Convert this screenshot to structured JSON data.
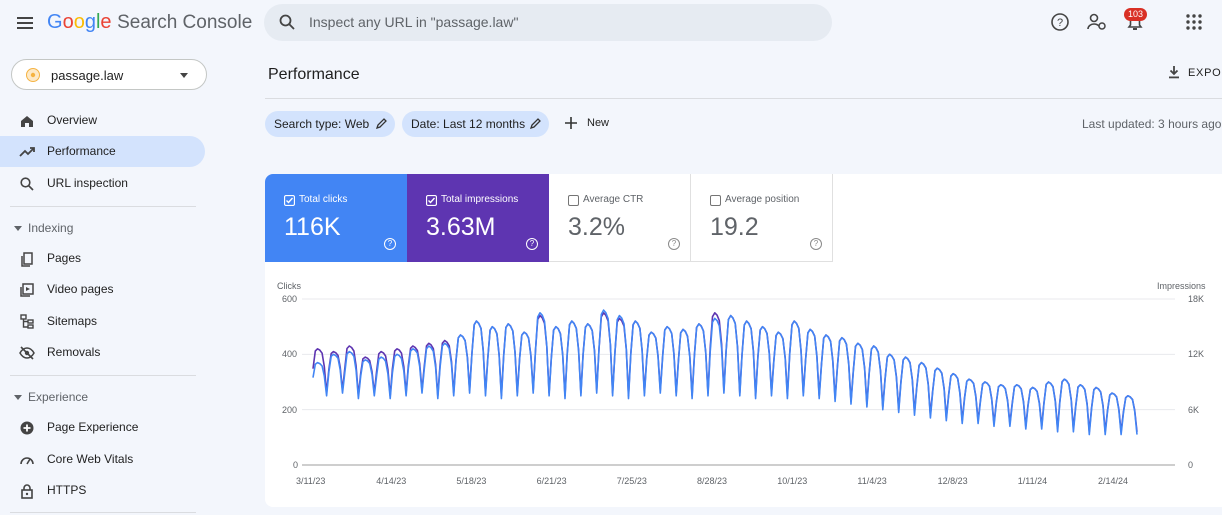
{
  "app": {
    "logo_google": "Google",
    "logo_product": "Search Console",
    "search_placeholder": "Inspect any URL in \"passage.law\"",
    "notification_count": "103"
  },
  "sidebar": {
    "property": "passage.law",
    "items_top": [
      {
        "label": "Overview",
        "icon": "home-icon"
      },
      {
        "label": "Performance",
        "icon": "trending-up-icon",
        "active": true
      },
      {
        "label": "URL inspection",
        "icon": "search-icon"
      }
    ],
    "indexing": {
      "title": "Indexing",
      "items": [
        {
          "label": "Pages",
          "icon": "pages-icon"
        },
        {
          "label": "Video pages",
          "icon": "video-pages-icon"
        },
        {
          "label": "Sitemaps",
          "icon": "sitemap-icon"
        },
        {
          "label": "Removals",
          "icon": "removals-icon"
        }
      ]
    },
    "experience": {
      "title": "Experience",
      "items": [
        {
          "label": "Page Experience",
          "icon": "page-experience-icon"
        },
        {
          "label": "Core Web Vitals",
          "icon": "speed-icon"
        },
        {
          "label": "HTTPS",
          "icon": "lock-icon"
        }
      ]
    }
  },
  "main": {
    "title": "Performance",
    "export_label": "EXPORT",
    "filters": {
      "search_type": "Search type: Web",
      "date": "Date: Last 12 months",
      "new_label": "New"
    },
    "last_updated": "Last updated: 3 hours ago"
  },
  "metrics": [
    {
      "label": "Total clicks",
      "value": "116K",
      "checked": true,
      "color": "#4285f4"
    },
    {
      "label": "Total impressions",
      "value": "3.63M",
      "checked": true,
      "color": "#5e35b1"
    },
    {
      "label": "Average CTR",
      "value": "3.2%",
      "checked": false
    },
    {
      "label": "Average position",
      "value": "19.2",
      "checked": false
    }
  ],
  "colors": {
    "clicks": "#4285f4",
    "impressions": "#5e35b1",
    "active_nav": "#d3e3fd"
  },
  "chart_data": {
    "type": "line",
    "left_axis_label": "Clicks",
    "right_axis_label": "Impressions",
    "left_ticks": [
      "600",
      "400",
      "200",
      "0"
    ],
    "right_ticks": [
      "18K",
      "12K",
      "6K",
      "0"
    ],
    "ylim_left": [
      0,
      600
    ],
    "ylim_right": [
      0,
      18000
    ],
    "x_tick_labels": [
      "3/11/23",
      "4/14/23",
      "5/18/23",
      "6/21/23",
      "7/25/23",
      "8/28/23",
      "10/1/23",
      "11/4/23",
      "12/8/23",
      "1/11/24",
      "2/14/24"
    ],
    "grid": true,
    "series": [
      {
        "name": "Clicks",
        "color": "#4285f4",
        "axis": "left",
        "weekly_peaks": [
          370,
          400,
          410,
          380,
          390,
          400,
          420,
          430,
          440,
          470,
          520,
          500,
          510,
          480,
          550,
          500,
          520,
          510,
          560,
          540,
          520,
          480,
          500,
          490,
          510,
          530,
          540,
          520,
          500,
          480,
          520,
          490,
          470,
          460,
          440,
          430,
          400,
          390,
          370,
          350,
          330,
          310,
          300,
          290,
          290,
          280,
          300,
          310,
          290,
          280,
          260,
          250
        ],
        "weekly_troughs": [
          250,
          260,
          240,
          250,
          240,
          250,
          260,
          240,
          250,
          260,
          250,
          240,
          250,
          260,
          250,
          240,
          250,
          260,
          250,
          240,
          250,
          260,
          250,
          240,
          250,
          260,
          250,
          240,
          250,
          240,
          250,
          240,
          230,
          220,
          210,
          200,
          190,
          180,
          170,
          160,
          150,
          150,
          140,
          140,
          130,
          130,
          120,
          120,
          110,
          110,
          110,
          110
        ]
      },
      {
        "name": "Impressions",
        "color": "#5e35b1",
        "axis": "right",
        "weekly_peaks": [
          12600,
          12300,
          12900,
          11700,
          12300,
          12600,
          12900,
          13200,
          13500,
          14100,
          15600,
          15000,
          15300,
          14400,
          16200,
          15000,
          15600,
          15300,
          16500,
          15900,
          15600,
          14400,
          15000,
          14700,
          15300,
          16500,
          16200,
          15600,
          15000,
          14400,
          15600,
          14700,
          14100,
          13800,
          13200,
          12900,
          12000,
          11700,
          11100,
          10500,
          9900,
          9300,
          9000,
          8700,
          8700,
          8400,
          9000,
          9300,
          8700,
          8400,
          7800,
          7500
        ],
        "weekly_troughs": [
          7800,
          8100,
          7500,
          7800,
          7500,
          7800,
          8100,
          7500,
          7800,
          8100,
          7800,
          7500,
          7800,
          8100,
          7800,
          7500,
          7800,
          8100,
          7800,
          7500,
          7800,
          8100,
          7800,
          7500,
          7800,
          8100,
          7800,
          7500,
          7800,
          7500,
          7800,
          7500,
          7200,
          6900,
          6600,
          6300,
          6000,
          5700,
          5400,
          5100,
          4800,
          4800,
          4500,
          4500,
          4200,
          4200,
          3900,
          3900,
          3600,
          3600,
          3600,
          3600
        ]
      }
    ]
  }
}
